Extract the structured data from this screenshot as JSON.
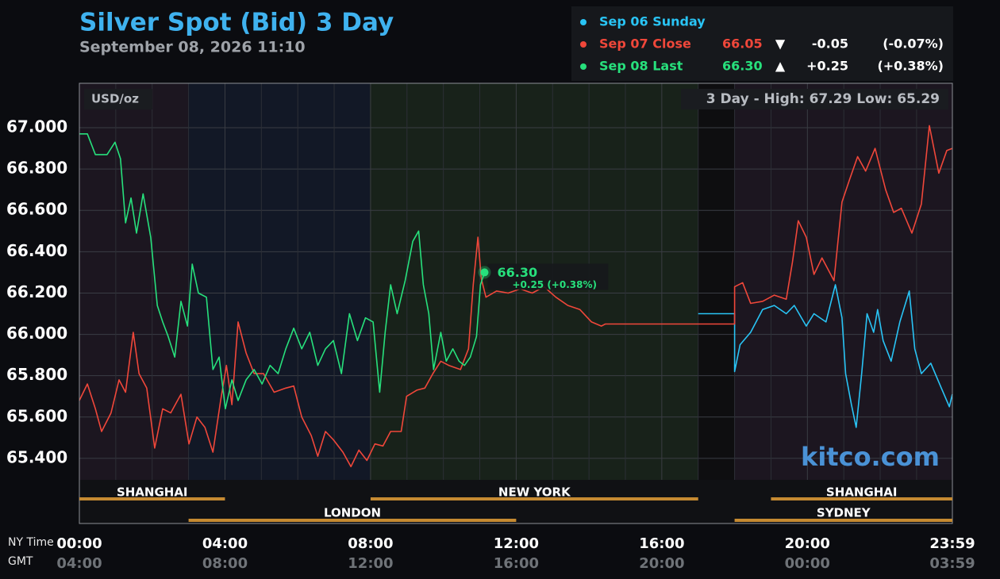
{
  "chart_data": {
    "type": "line",
    "title": "Silver Spot (Bid) 3 Day",
    "subtitle": "September 08, 2026 11:10",
    "unit_label": "USD/oz",
    "range_label": "3 Day - High: 67.29  Low: 65.29",
    "watermark": "kitco.com",
    "x_axis_label": "NY Time",
    "x2_axis_label": "GMT",
    "xlim": [
      0,
      23.983
    ],
    "ylim": [
      65.296,
      67.215
    ],
    "yticks": [
      {
        "value": 65.4,
        "label": "65.400"
      },
      {
        "value": 65.6,
        "label": "65.600"
      },
      {
        "value": 65.8,
        "label": "65.800"
      },
      {
        "value": 66.0,
        "label": "66.000"
      },
      {
        "value": 66.2,
        "label": "66.200"
      },
      {
        "value": 66.4,
        "label": "66.400"
      },
      {
        "value": 66.6,
        "label": "66.600"
      },
      {
        "value": 66.8,
        "label": "66.800"
      },
      {
        "value": 67.0,
        "label": "67.000"
      }
    ],
    "xticks": [
      {
        "value": 0,
        "label": "00:00"
      },
      {
        "value": 4,
        "label": "04:00"
      },
      {
        "value": 8,
        "label": "08:00"
      },
      {
        "value": 12,
        "label": "12:00"
      },
      {
        "value": 16,
        "label": "16:00"
      },
      {
        "value": 20,
        "label": "20:00"
      },
      {
        "value": 23.983,
        "label": "23:59"
      }
    ],
    "x2tick_labels": [
      "04:00",
      "08:00",
      "12:00",
      "16:00",
      "20:00",
      "00:00",
      "03:59"
    ],
    "x_minor_ticks": [
      1,
      2,
      3,
      5,
      6,
      7,
      9,
      10,
      11,
      13,
      14,
      15,
      17,
      18,
      19,
      21,
      22,
      23
    ],
    "grid": true,
    "sessions_top": [
      {
        "label": "SHANGHAI",
        "start": 0,
        "end": 4
      },
      {
        "label": "NEW YORK",
        "start": 8,
        "end": 17
      },
      {
        "label": "SHANGHAI",
        "start": 19,
        "end": 23.983
      }
    ],
    "sessions_bottom": [
      {
        "label": "LONDON",
        "start": 3,
        "end": 12
      },
      {
        "label": "SYDNEY",
        "start": 18,
        "end": 23.983
      }
    ],
    "last_label": "66.30",
    "last_change_label": "+0.25 (+0.38%)",
    "series": [
      {
        "name": "Sep 06 Sunday",
        "color": "#29c4f5",
        "x": [
          17.0,
          18.0,
          18.0,
          18.15,
          18.44,
          18.77,
          19.09,
          19.42,
          19.64,
          19.97,
          20.18,
          20.51,
          20.77,
          20.95,
          21.05,
          21.21,
          21.34,
          21.49,
          21.64,
          21.82,
          21.93,
          22.08,
          22.3,
          22.54,
          22.8,
          22.95,
          23.13,
          23.39,
          23.68,
          23.9,
          23.98
        ],
        "values": [
          66.1,
          66.1,
          65.82,
          65.95,
          66.01,
          66.12,
          66.14,
          66.1,
          66.14,
          66.04,
          66.1,
          66.06,
          66.24,
          66.08,
          65.81,
          65.66,
          65.55,
          65.81,
          66.1,
          66.01,
          66.12,
          65.97,
          65.87,
          66.06,
          66.21,
          65.93,
          65.81,
          65.86,
          65.74,
          65.65,
          65.71
        ]
      },
      {
        "name": "Sep 07 Close",
        "color": "#f0473a",
        "price": "66.05",
        "arrow": "▼",
        "change": "-0.05",
        "change_pct": "(-0.07%)",
        "x": [
          0,
          0.22,
          0.44,
          0.61,
          0.87,
          1.09,
          1.27,
          1.48,
          1.64,
          1.85,
          2.07,
          2.29,
          2.51,
          2.79,
          3.01,
          3.23,
          3.45,
          3.67,
          3.88,
          4.04,
          4.19,
          4.36,
          4.58,
          4.8,
          5.06,
          5.35,
          5.67,
          5.89,
          6.11,
          6.37,
          6.55,
          6.76,
          6.98,
          7.24,
          7.46,
          7.68,
          7.9,
          8.12,
          8.34,
          8.55,
          8.84,
          8.99,
          9.27,
          9.49,
          9.71,
          9.93,
          10.15,
          10.47,
          10.69,
          10.82,
          10.95,
          11.04,
          11.17,
          11.46,
          11.78,
          12.11,
          12.44,
          12.77,
          13.09,
          13.42,
          13.75,
          14.07,
          14.34,
          14.45,
          18.0,
          18.0,
          18.22,
          18.44,
          18.77,
          19.09,
          19.42,
          19.59,
          19.75,
          19.97,
          20.18,
          20.4,
          20.73,
          20.95,
          21.16,
          21.38,
          21.6,
          21.86,
          22.15,
          22.37,
          22.58,
          22.87,
          23.13,
          23.35,
          23.61,
          23.83,
          23.98
        ],
        "values": [
          65.68,
          65.76,
          65.64,
          65.53,
          65.62,
          65.78,
          65.72,
          66.01,
          65.81,
          65.74,
          65.45,
          65.64,
          65.62,
          65.71,
          65.47,
          65.6,
          65.55,
          65.43,
          65.68,
          65.85,
          65.66,
          66.06,
          65.91,
          65.81,
          65.81,
          65.72,
          65.74,
          65.75,
          65.6,
          65.51,
          65.41,
          65.53,
          65.49,
          65.43,
          65.36,
          65.44,
          65.39,
          65.47,
          65.46,
          65.53,
          65.53,
          65.7,
          65.73,
          65.74,
          65.81,
          65.87,
          65.85,
          65.83,
          65.93,
          66.24,
          66.47,
          66.27,
          66.18,
          66.21,
          66.2,
          66.22,
          66.2,
          66.23,
          66.18,
          66.14,
          66.12,
          66.06,
          66.04,
          66.05,
          66.05,
          66.23,
          66.25,
          66.15,
          66.16,
          66.19,
          66.17,
          66.35,
          66.55,
          66.47,
          66.29,
          66.37,
          66.26,
          66.64,
          66.75,
          66.86,
          66.79,
          66.9,
          66.7,
          66.59,
          66.61,
          66.49,
          66.63,
          67.01,
          66.78,
          66.89,
          66.9
        ]
      },
      {
        "name": "Sep 08 Last",
        "color": "#27e07c",
        "price": "66.30",
        "arrow": "▲",
        "change": "+0.25",
        "change_pct": "(+0.38%)",
        "x": [
          0,
          0.22,
          0.44,
          0.76,
          0.98,
          1.13,
          1.27,
          1.42,
          1.57,
          1.75,
          1.96,
          2.14,
          2.29,
          2.44,
          2.62,
          2.79,
          2.97,
          3.1,
          3.27,
          3.49,
          3.67,
          3.84,
          4.01,
          4.19,
          4.36,
          4.58,
          4.8,
          5.02,
          5.24,
          5.46,
          5.67,
          5.89,
          6.11,
          6.33,
          6.55,
          6.76,
          6.98,
          7.2,
          7.42,
          7.64,
          7.86,
          8.07,
          8.25,
          8.4,
          8.55,
          8.73,
          8.95,
          9.16,
          9.32,
          9.45,
          9.6,
          9.73,
          9.93,
          10.08,
          10.26,
          10.43,
          10.58,
          10.74,
          10.91,
          11.02,
          11.13
        ],
        "values": [
          66.97,
          66.97,
          66.87,
          66.87,
          66.93,
          66.85,
          66.54,
          66.66,
          66.49,
          66.68,
          66.47,
          66.14,
          66.06,
          65.99,
          65.89,
          66.16,
          66.04,
          66.34,
          66.2,
          66.18,
          65.83,
          65.89,
          65.64,
          65.78,
          65.68,
          65.78,
          65.83,
          65.76,
          65.85,
          65.81,
          65.93,
          66.03,
          65.93,
          66.01,
          65.85,
          65.93,
          65.97,
          65.81,
          66.1,
          65.97,
          66.08,
          66.06,
          65.72,
          66.01,
          66.24,
          66.1,
          66.26,
          66.45,
          66.5,
          66.24,
          66.1,
          65.83,
          66.01,
          65.87,
          65.93,
          65.87,
          65.85,
          65.89,
          65.99,
          66.24,
          66.3
        ]
      }
    ]
  }
}
